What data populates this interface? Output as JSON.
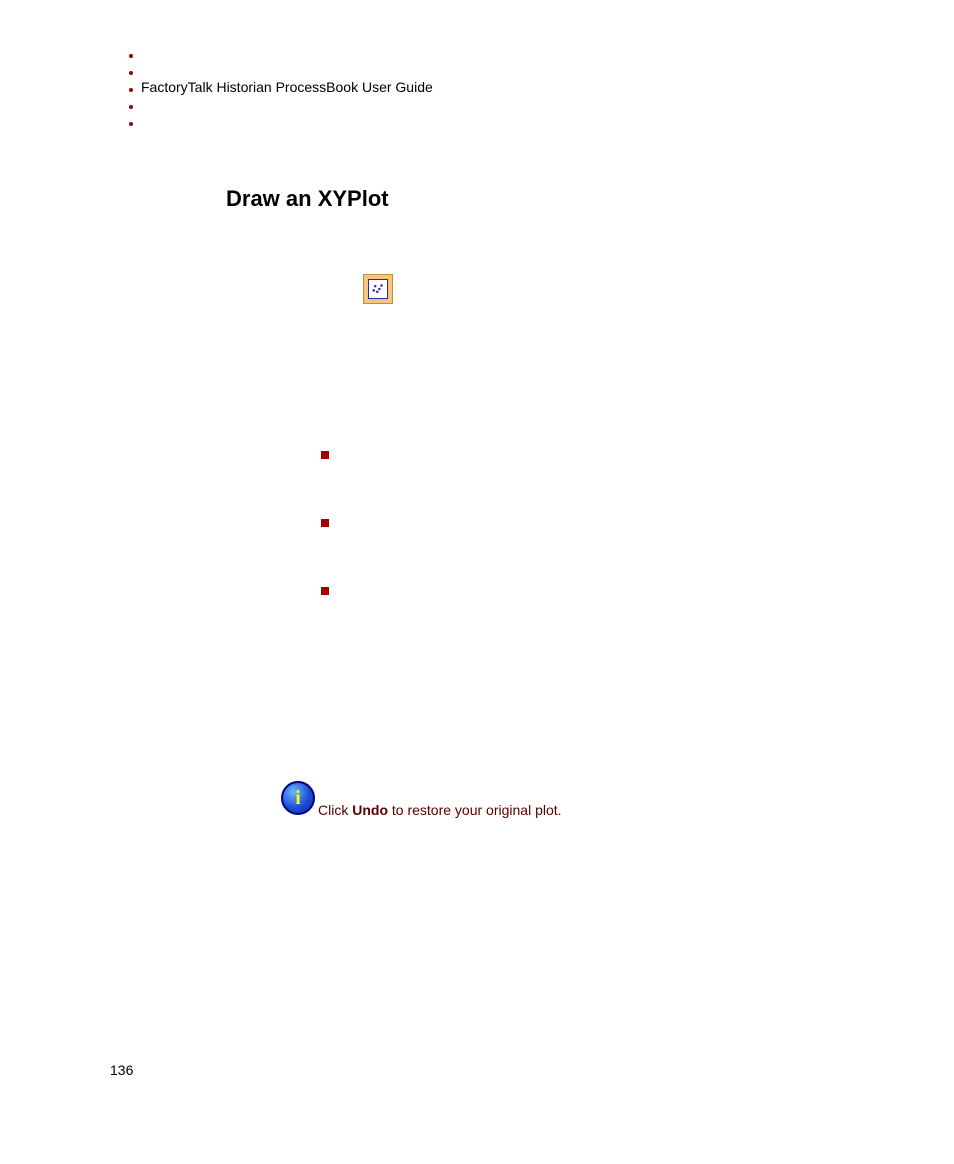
{
  "header": {
    "guide_title": "FactoryTalk Historian ProcessBook User Guide",
    "dot_count": 5,
    "dot_color": "#a00000"
  },
  "section": {
    "title": "Draw an XYPlot"
  },
  "icon": {
    "name": "xyplot-tool-icon",
    "bg_color": "#f6c680",
    "border_color": "#c09040",
    "inner_border": "#2b2ba0"
  },
  "bullets": {
    "style": "square",
    "color": "#a00000",
    "count": 3
  },
  "note": {
    "icon": {
      "letter": "i",
      "fill_gradient": [
        "#6fb6ff",
        "#1c4fd6",
        "#0a2a90"
      ],
      "border": "#000080",
      "letter_color": "#ffff00"
    },
    "text_prefix": "Click ",
    "text_bold": "Undo",
    "text_suffix": " to restore your original plot.",
    "text_color": "#5a0000"
  },
  "footer": {
    "page_number": "136"
  }
}
